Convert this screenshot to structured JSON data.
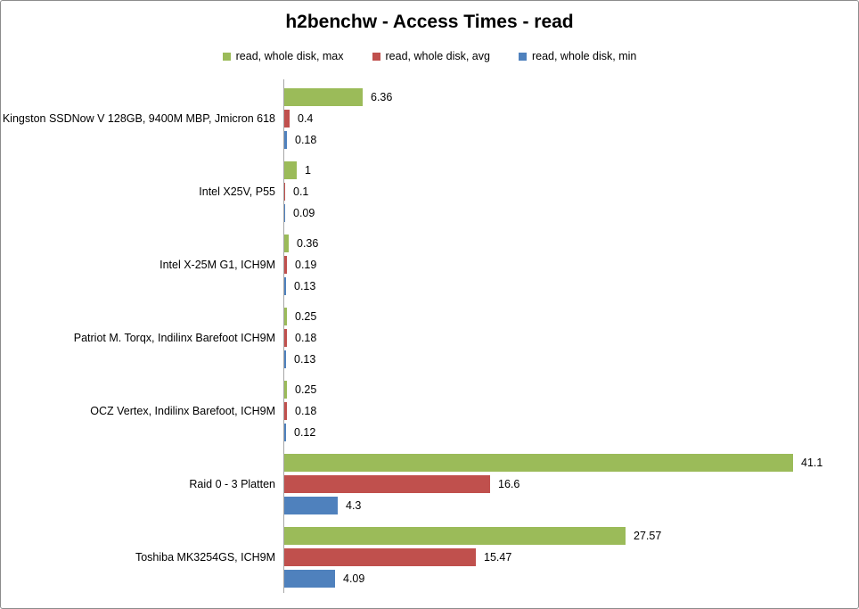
{
  "window": {
    "background": "#ffffff",
    "border_color": "#8c8c8c"
  },
  "chart_data": {
    "type": "bar",
    "orientation": "horizontal",
    "title": "h2benchw - Access Times - read",
    "legend_position": "top",
    "grid": false,
    "value_axis_visible": false,
    "category_axis_line_color": "#a6a6a6",
    "xlim": [
      0,
      45
    ],
    "categories": [
      "Kingston SSDNow V 128GB, 9400M MBP, Jmicron 618",
      "Intel X25V, P55",
      "Intel X-25M G1, ICH9M",
      "Patriot M. Torqx, Indilinx Barefoot ICH9M",
      "OCZ Vertex, Indilinx Barefoot, ICH9M",
      "Raid 0 - 3 Platten",
      "Toshiba MK3254GS, ICH9M"
    ],
    "series": [
      {
        "name": "read, whole disk, max",
        "color": "#9bbb59",
        "values": [
          6.36,
          1,
          0.36,
          0.25,
          0.25,
          41.1,
          27.57
        ]
      },
      {
        "name": "read, whole disk, avg",
        "color": "#c0504d",
        "values": [
          0.4,
          0.1,
          0.19,
          0.18,
          0.18,
          16.6,
          15.47
        ]
      },
      {
        "name": "read, whole disk, min",
        "color": "#4f81bd",
        "values": [
          0.18,
          0.09,
          0.13,
          0.13,
          0.12,
          4.3,
          4.09
        ]
      }
    ]
  }
}
